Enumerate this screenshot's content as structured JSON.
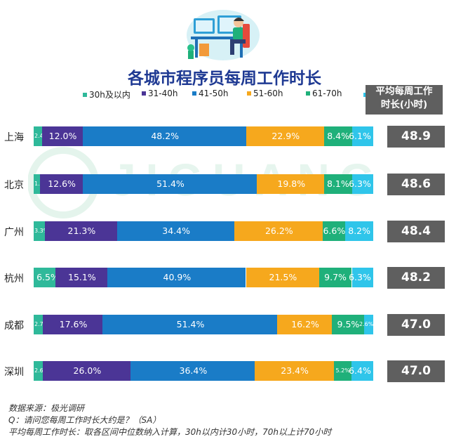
{
  "title": "各城市程序员每周工作时长",
  "avg_header": [
    "平均每周工作",
    "时长(小时)"
  ],
  "watermark_text": "JIGUANG 极光数据服务",
  "footnotes": [
    "数据来源：极光调研",
    "Q：请问您每周工作时长大约是？（SA）",
    "平均每周工作时长：取各区间中位数纳入计算，30h以内计30小时，70h以上计70小时"
  ],
  "colors": {
    "30h及以内": "#2fb99a",
    "31-40h": "#4b3596",
    "41-50h": "#1a7cc7",
    "51-60h": "#f6a81d",
    "61-70h": "#1fb07a",
    "70h以上": "#2fc5ea"
  },
  "chart_data": {
    "type": "bar",
    "stacked": true,
    "orientation": "horizontal",
    "title": "各城市程序员每周工作时长",
    "categories": [
      "上海",
      "北京",
      "广州",
      "杭州",
      "成都",
      "深圳"
    ],
    "series": [
      {
        "name": "30h及以内",
        "values": [
          2.4,
          1.8,
          3.3,
          6.5,
          2.7,
          2.6
        ],
        "labels": [
          "2.4%",
          "1.8%",
          "3.3%",
          "6.5%",
          "2.7%",
          "2.6%"
        ]
      },
      {
        "name": "31-40h",
        "values": [
          12.0,
          12.6,
          21.3,
          15.1,
          17.6,
          26.0
        ],
        "labels": [
          "12.0%",
          "12.6%",
          "21.3%",
          "15.1%",
          "17.6%",
          "26.0%"
        ]
      },
      {
        "name": "41-50h",
        "values": [
          48.2,
          51.4,
          34.4,
          40.9,
          51.4,
          36.4
        ],
        "labels": [
          "48.2%",
          "51.4%",
          "34.4%",
          "40.9%",
          "51.4%",
          "36.4%"
        ]
      },
      {
        "name": "51-60h",
        "values": [
          22.9,
          19.8,
          26.2,
          21.5,
          16.2,
          23.4
        ],
        "labels": [
          "22.9%",
          "19.8%",
          "26.2%",
          "21.5%",
          "16.2%",
          "23.4%"
        ]
      },
      {
        "name": "61-70h",
        "values": [
          8.4,
          8.1,
          6.6,
          9.7,
          9.5,
          5.2
        ],
        "labels": [
          "8.4%",
          "8.1%",
          "6.6%",
          "9.7%",
          "9.5%",
          "5.2%"
        ]
      },
      {
        "name": "70h以上",
        "values": [
          6.1,
          6.3,
          8.2,
          6.3,
          2.6,
          6.4
        ],
        "labels": [
          "6.1%",
          "6.3%",
          "8.2%",
          "6.3%",
          "2.6%",
          "6.4%"
        ]
      }
    ],
    "averages": [
      48.9,
      48.6,
      48.4,
      48.2,
      47.0,
      47.0
    ],
    "average_labels": [
      "48.9",
      "48.6",
      "48.4",
      "48.2",
      "47.0",
      "47.0"
    ],
    "legend_position": "top"
  }
}
